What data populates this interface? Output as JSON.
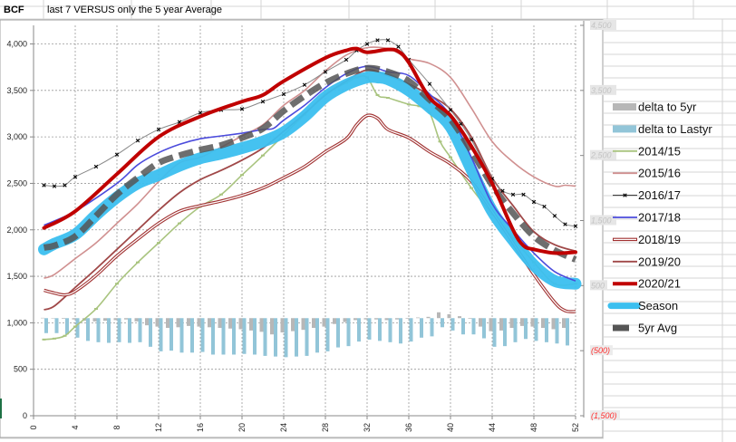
{
  "sheet": {
    "cell_a": "BCF",
    "cell_b": "last 7 VERSUS only the 5 year Average"
  },
  "chart_data": {
    "type": "line",
    "title": "last 7 VERSUS only the 5 year Average",
    "ylabel": "BCF",
    "xlim": [
      0,
      52
    ],
    "ylim": [
      0,
      4200
    ],
    "y2lim": [
      -1500,
      4500
    ],
    "grid": true,
    "legend_position": "right",
    "x_ticks": [
      "0",
      "4",
      "8",
      "12",
      "16",
      "20",
      "24",
      "28",
      "32",
      "36",
      "40",
      "44",
      "48",
      "52"
    ],
    "y_ticks": [
      {
        "v": 0,
        "label": "0"
      },
      {
        "v": 500,
        "label": "500"
      },
      {
        "v": 1000,
        "label": "1,000"
      },
      {
        "v": 1500,
        "label": "1,500"
      },
      {
        "v": 2000,
        "label": "2,000"
      },
      {
        "v": 2500,
        "label": "2,500"
      },
      {
        "v": 3000,
        "label": "3,000"
      },
      {
        "v": 3500,
        "label": "3,500"
      },
      {
        "v": 4000,
        "label": "4,000"
      }
    ],
    "y2_ticks": [
      {
        "v": 4500,
        "label": "4,500"
      },
      {
        "v": 3500,
        "label": "3,500"
      },
      {
        "v": 2500,
        "label": "2,500"
      },
      {
        "v": 1500,
        "label": "1,500"
      },
      {
        "v": 500,
        "label": "500"
      },
      {
        "v": -500,
        "label": "(500)"
      },
      {
        "v": -1500,
        "label": "(1,500)"
      }
    ],
    "bars": [
      {
        "name": "delta to 5yr",
        "color": "#b7b7b7",
        "axis": "right",
        "values": [
          5,
          0,
          -10,
          -20,
          -40,
          -50,
          -40,
          -30,
          -20,
          -50,
          -110,
          -130,
          -150,
          -140,
          -120,
          -130,
          -140,
          -150,
          -160,
          -170,
          -190,
          -210,
          -250,
          -220,
          -200,
          -180,
          -150,
          -130,
          -90,
          -60,
          -30,
          -20,
          -20,
          -30,
          -20,
          -10,
          10,
          20,
          90,
          60,
          30,
          -10,
          -130,
          -200,
          -190,
          -150,
          -120,
          -130,
          -150,
          -170,
          -150
        ]
      },
      {
        "name": "delta to Lastyr",
        "color": "#92c5d8",
        "axis": "right",
        "values": [
          -230,
          -230,
          -250,
          -300,
          -350,
          -370,
          -380,
          -370,
          -380,
          -370,
          -440,
          -510,
          -500,
          -530,
          -530,
          -520,
          -560,
          -560,
          -560,
          -550,
          -560,
          -580,
          -590,
          -600,
          -590,
          -580,
          -530,
          -510,
          -450,
          -430,
          -360,
          -330,
          -350,
          -370,
          -390,
          -360,
          -300,
          -280,
          -140,
          -190,
          -250,
          -250,
          -310,
          -440,
          -430,
          -370,
          -320,
          -350,
          -370,
          -390,
          -420
        ]
      }
    ],
    "series": [
      {
        "name": "2014/15",
        "color": "#a9c47f",
        "style": "line-tick",
        "points": [
          [
            1,
            820
          ],
          [
            2,
            830
          ],
          [
            3,
            860
          ],
          [
            4,
            960
          ],
          [
            6,
            1150
          ],
          [
            8,
            1420
          ],
          [
            10,
            1650
          ],
          [
            12,
            1860
          ],
          [
            14,
            2070
          ],
          [
            16,
            2250
          ],
          [
            18,
            2380
          ],
          [
            20,
            2590
          ],
          [
            22,
            2800
          ],
          [
            24,
            3020
          ],
          [
            26,
            3240
          ],
          [
            28,
            3460
          ],
          [
            30,
            3580
          ],
          [
            31,
            3640
          ],
          [
            32,
            3640
          ],
          [
            33,
            3450
          ],
          [
            34,
            3420
          ],
          [
            36,
            3350
          ],
          [
            37,
            3330
          ],
          [
            38,
            3260
          ],
          [
            39,
            2950
          ],
          [
            40,
            2780
          ],
          [
            42,
            2450
          ],
          [
            44,
            2170
          ],
          [
            46,
            1910
          ],
          [
            48,
            1650
          ],
          [
            50,
            1420
          ],
          [
            52,
            1420
          ]
        ]
      },
      {
        "name": "2015/16",
        "color": "#d09090",
        "style": "line",
        "points": [
          [
            1,
            1480
          ],
          [
            2,
            1520
          ],
          [
            4,
            1690
          ],
          [
            6,
            1860
          ],
          [
            8,
            2070
          ],
          [
            10,
            2280
          ],
          [
            12,
            2520
          ],
          [
            14,
            2720
          ],
          [
            16,
            2780
          ],
          [
            18,
            2890
          ],
          [
            20,
            3010
          ],
          [
            22,
            3130
          ],
          [
            24,
            3340
          ],
          [
            26,
            3500
          ],
          [
            28,
            3710
          ],
          [
            30,
            3880
          ],
          [
            32,
            3960
          ],
          [
            34,
            3950
          ],
          [
            35,
            3900
          ],
          [
            36,
            3840
          ],
          [
            38,
            3790
          ],
          [
            40,
            3640
          ],
          [
            42,
            3310
          ],
          [
            44,
            2950
          ],
          [
            46,
            2730
          ],
          [
            48,
            2570
          ],
          [
            50,
            2470
          ],
          [
            51,
            2480
          ],
          [
            52,
            2470
          ]
        ]
      },
      {
        "name": "2016/17",
        "color": "#222222",
        "style": "marker",
        "points": [
          [
            1,
            2480
          ],
          [
            2,
            2470
          ],
          [
            3,
            2480
          ],
          [
            4,
            2570
          ],
          [
            6,
            2680
          ],
          [
            8,
            2810
          ],
          [
            10,
            2960
          ],
          [
            12,
            3080
          ],
          [
            14,
            3160
          ],
          [
            16,
            3260
          ],
          [
            18,
            3290
          ],
          [
            20,
            3300
          ],
          [
            22,
            3380
          ],
          [
            24,
            3460
          ],
          [
            26,
            3560
          ],
          [
            28,
            3700
          ],
          [
            30,
            3830
          ],
          [
            31,
            3930
          ],
          [
            32,
            4000
          ],
          [
            33,
            4040
          ],
          [
            34,
            4040
          ],
          [
            35,
            3970
          ],
          [
            36,
            3830
          ],
          [
            38,
            3570
          ],
          [
            40,
            3290
          ],
          [
            41,
            3140
          ],
          [
            42,
            2970
          ],
          [
            44,
            2550
          ],
          [
            45,
            2420
          ],
          [
            46,
            2380
          ],
          [
            47,
            2380
          ],
          [
            48,
            2300
          ],
          [
            49,
            2250
          ],
          [
            50,
            2150
          ],
          [
            51,
            2060
          ],
          [
            52,
            2040
          ]
        ]
      },
      {
        "name": "2017/18",
        "color": "#4b4bdc",
        "style": "line",
        "points": [
          [
            1,
            2050
          ],
          [
            4,
            2200
          ],
          [
            8,
            2500
          ],
          [
            10,
            2700
          ],
          [
            12,
            2830
          ],
          [
            14,
            2920
          ],
          [
            16,
            2980
          ],
          [
            18,
            3010
          ],
          [
            20,
            3040
          ],
          [
            22,
            3080
          ],
          [
            23,
            3090
          ],
          [
            24,
            3180
          ],
          [
            26,
            3340
          ],
          [
            28,
            3530
          ],
          [
            30,
            3680
          ],
          [
            32,
            3760
          ],
          [
            34,
            3700
          ],
          [
            36,
            3660
          ],
          [
            38,
            3460
          ],
          [
            40,
            3230
          ],
          [
            42,
            2780
          ],
          [
            44,
            2280
          ],
          [
            46,
            2000
          ],
          [
            48,
            1750
          ],
          [
            50,
            1550
          ],
          [
            52,
            1450
          ]
        ]
      },
      {
        "name": "2018/19",
        "color": "#a03030",
        "style": "double",
        "points": [
          [
            1,
            1350
          ],
          [
            2,
            1320
          ],
          [
            3,
            1300
          ],
          [
            4,
            1340
          ],
          [
            6,
            1510
          ],
          [
            8,
            1720
          ],
          [
            10,
            1900
          ],
          [
            12,
            2070
          ],
          [
            14,
            2200
          ],
          [
            16,
            2260
          ],
          [
            18,
            2310
          ],
          [
            20,
            2370
          ],
          [
            22,
            2450
          ],
          [
            24,
            2560
          ],
          [
            26,
            2680
          ],
          [
            28,
            2840
          ],
          [
            30,
            2980
          ],
          [
            31,
            3130
          ],
          [
            32,
            3230
          ],
          [
            33,
            3200
          ],
          [
            34,
            3080
          ],
          [
            36,
            2990
          ],
          [
            38,
            2840
          ],
          [
            40,
            2710
          ],
          [
            42,
            2520
          ],
          [
            44,
            2200
          ],
          [
            46,
            1860
          ],
          [
            48,
            1520
          ],
          [
            50,
            1220
          ],
          [
            51,
            1130
          ],
          [
            52,
            1120
          ]
        ]
      },
      {
        "name": "2019/20",
        "color": "#a04848",
        "style": "line-thick",
        "points": [
          [
            1,
            1140
          ],
          [
            2,
            1180
          ],
          [
            4,
            1380
          ],
          [
            6,
            1580
          ],
          [
            8,
            1790
          ],
          [
            10,
            2000
          ],
          [
            12,
            2210
          ],
          [
            14,
            2400
          ],
          [
            16,
            2540
          ],
          [
            18,
            2640
          ],
          [
            20,
            2750
          ],
          [
            22,
            2880
          ],
          [
            24,
            3060
          ],
          [
            26,
            3250
          ],
          [
            28,
            3450
          ],
          [
            30,
            3600
          ],
          [
            32,
            3720
          ],
          [
            34,
            3660
          ],
          [
            36,
            3570
          ],
          [
            38,
            3450
          ],
          [
            40,
            3300
          ],
          [
            42,
            3000
          ],
          [
            44,
            2560
          ],
          [
            46,
            2260
          ],
          [
            48,
            1980
          ],
          [
            50,
            1840
          ],
          [
            52,
            1770
          ]
        ]
      },
      {
        "name": "2020/21",
        "color": "#c00000",
        "style": "bold",
        "points": [
          [
            1,
            2020
          ],
          [
            4,
            2200
          ],
          [
            8,
            2600
          ],
          [
            12,
            3000
          ],
          [
            16,
            3220
          ],
          [
            20,
            3380
          ],
          [
            22,
            3450
          ],
          [
            24,
            3600
          ],
          [
            28,
            3850
          ],
          [
            30,
            3930
          ],
          [
            31,
            3950
          ],
          [
            32,
            3910
          ],
          [
            34,
            3940
          ],
          [
            35,
            3920
          ],
          [
            36,
            3800
          ],
          [
            38,
            3420
          ],
          [
            40,
            3230
          ],
          [
            42,
            2900
          ],
          [
            44,
            2500
          ],
          [
            46,
            2000
          ],
          [
            47,
            1830
          ],
          [
            48,
            1790
          ],
          [
            50,
            1750
          ],
          [
            52,
            1760
          ]
        ]
      },
      {
        "name": "Season",
        "color": "#3bbfef",
        "style": "season",
        "points": [
          [
            1,
            1790
          ],
          [
            2,
            1850
          ],
          [
            4,
            1950
          ],
          [
            6,
            2160
          ],
          [
            8,
            2350
          ],
          [
            10,
            2500
          ],
          [
            12,
            2590
          ],
          [
            14,
            2690
          ],
          [
            16,
            2770
          ],
          [
            18,
            2820
          ],
          [
            20,
            2880
          ],
          [
            22,
            2950
          ],
          [
            24,
            3050
          ],
          [
            26,
            3220
          ],
          [
            28,
            3430
          ],
          [
            30,
            3560
          ],
          [
            32,
            3640
          ],
          [
            33,
            3640
          ],
          [
            34,
            3620
          ],
          [
            36,
            3500
          ],
          [
            38,
            3320
          ],
          [
            40,
            3110
          ],
          [
            42,
            2650
          ],
          [
            44,
            2200
          ],
          [
            46,
            1890
          ],
          [
            48,
            1620
          ],
          [
            50,
            1450
          ],
          [
            52,
            1420
          ]
        ]
      },
      {
        "name": "5yr Avg",
        "color": "#555555",
        "style": "dashed",
        "points": [
          [
            1,
            1810
          ],
          [
            2,
            1830
          ],
          [
            4,
            1930
          ],
          [
            6,
            2150
          ],
          [
            8,
            2380
          ],
          [
            10,
            2560
          ],
          [
            12,
            2720
          ],
          [
            14,
            2800
          ],
          [
            16,
            2860
          ],
          [
            18,
            2910
          ],
          [
            20,
            2990
          ],
          [
            22,
            3090
          ],
          [
            24,
            3280
          ],
          [
            26,
            3440
          ],
          [
            28,
            3580
          ],
          [
            30,
            3680
          ],
          [
            32,
            3740
          ],
          [
            34,
            3700
          ],
          [
            36,
            3600
          ],
          [
            38,
            3400
          ],
          [
            40,
            3190
          ],
          [
            42,
            2850
          ],
          [
            44,
            2480
          ],
          [
            46,
            2180
          ],
          [
            48,
            1930
          ],
          [
            50,
            1780
          ],
          [
            52,
            1680
          ]
        ]
      }
    ]
  }
}
